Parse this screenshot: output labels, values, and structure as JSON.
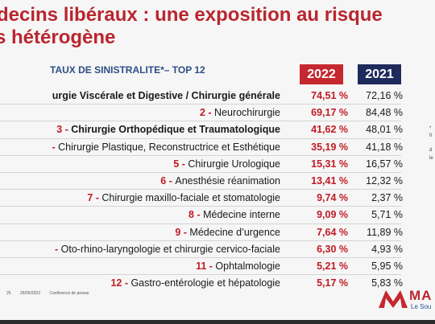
{
  "slide": {
    "title_line1": "decins libéraux : une exposition au risque",
    "title_line2": "s hétérogène",
    "subtitle": "TAUX DE SINISTRALITE*– TOP 12",
    "year_a": "2022",
    "year_b": "2021",
    "rows": [
      {
        "num": "",
        "label": "urgie Viscérale et Digestive / Chirurgie générale",
        "v2022": "74,51 %",
        "v2021": "72,16 %"
      },
      {
        "num": "2 - ",
        "label": "Neurochirurgie",
        "v2022": "69,17 %",
        "v2021": "84,48 %"
      },
      {
        "num": "3 - ",
        "label": "Chirurgie Orthopédique et Traumatologique",
        "v2022": "41,62 %",
        "v2021": "48,01 %"
      },
      {
        "num": "- ",
        "label": "Chirurgie Plastique, Reconstructrice et Esthétique",
        "v2022": "35,19 %",
        "v2021": "41,18 %"
      },
      {
        "num": "5 - ",
        "label": "Chirurgie Urologique",
        "v2022": "15,31 %",
        "v2021": "16,57 %"
      },
      {
        "num": "6 - ",
        "label": "Anesthésie réanimation",
        "v2022": "13,41 %",
        "v2021": "12,32 %"
      },
      {
        "num": "7 - ",
        "label": "Chirurgie maxillo-faciale et stomatologie",
        "v2022": "9,74 %",
        "v2021": "2,37 %"
      },
      {
        "num": "8 - ",
        "label": "Médecine interne",
        "v2022": "9,09 %",
        "v2021": "5,71 %"
      },
      {
        "num": "9 - ",
        "label": "Médecine d’urgence",
        "v2022": "7,64 %",
        "v2021": "11,89 %"
      },
      {
        "num": "- ",
        "label": "Oto-rhino-laryngologie et chirurgie cervico-faciale",
        "v2022": "6,30 %",
        "v2021": "4,93 %"
      },
      {
        "num": "11 - ",
        "label": "Ophtalmologie",
        "v2022": "5,21 %",
        "v2021": "5,95 %"
      },
      {
        "num": "12 - ",
        "label": "Gastro-entérologie et hépatologie",
        "v2022": "5,17 %",
        "v2021": "5,83 %"
      }
    ],
    "footer_page": "25",
    "footer_date": "26/09/2023",
    "footer_event": "Conférence de presse",
    "logo_text": "MA",
    "logo_sub": "Le Sou",
    "side_notes": [
      "*",
      "fr",
      "d",
      "le"
    ]
  },
  "colors": {
    "brand_red": "#c5282f",
    "navy": "#1f2a5c",
    "subtitle_blue": "#2b4e86"
  }
}
